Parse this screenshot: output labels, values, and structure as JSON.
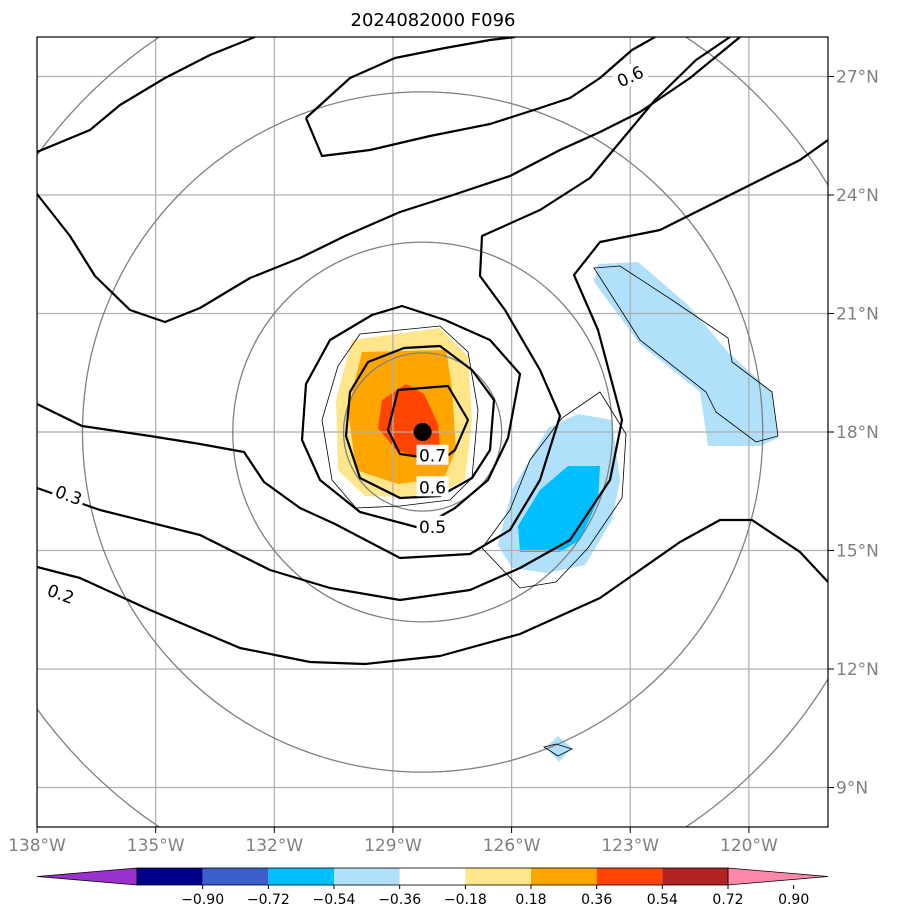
{
  "map": {
    "title": "2024082000 F096",
    "lon_range": [
      -138,
      -118
    ],
    "lat_range": [
      8,
      28
    ],
    "lon_ticks": [
      {
        "value": -138,
        "label": "138°W"
      },
      {
        "value": -135,
        "label": "135°W"
      },
      {
        "value": -132,
        "label": "132°W"
      },
      {
        "value": -129,
        "label": "129°W"
      },
      {
        "value": -126,
        "label": "126°W"
      },
      {
        "value": -123,
        "label": "123°W"
      },
      {
        "value": -120,
        "label": "120°W"
      }
    ],
    "lat_ticks": [
      {
        "value": 27,
        "label": "27°N"
      },
      {
        "value": 24,
        "label": "24°N"
      },
      {
        "value": 21,
        "label": "21°N"
      },
      {
        "value": 18,
        "label": "18°N"
      },
      {
        "value": 15,
        "label": "15°N"
      },
      {
        "value": 12,
        "label": "12°N"
      },
      {
        "value": 9,
        "label": "9°N"
      }
    ],
    "storm_center": {
      "lon": -128.25,
      "lat": 18.0
    },
    "range_rings_deg": [
      2,
      4.8,
      8.6,
      12
    ],
    "contour_labels": [
      {
        "text": "0.6",
        "lon": -123.0,
        "lat": 27.0,
        "angle": -25
      },
      {
        "text": "0.7",
        "lon": -128.0,
        "lat": 17.4,
        "angle": 0
      },
      {
        "text": "0.6",
        "lon": -128.0,
        "lat": 16.6,
        "angle": 0
      },
      {
        "text": "0.5",
        "lon": -128.0,
        "lat": 15.6,
        "angle": 0
      },
      {
        "text": "0.3",
        "lon": -137.2,
        "lat": 16.4,
        "angle": 20
      },
      {
        "text": "0.2",
        "lon": -137.4,
        "lat": 13.9,
        "angle": 20
      }
    ],
    "colors": {
      "grid": "#b0b0b0",
      "rings": "#808080",
      "contour": "#000000",
      "storm_marker": "#000000"
    }
  },
  "colorbar": {
    "tick_labels": [
      "−0.90",
      "−0.72",
      "−0.54",
      "−0.36",
      "−0.18",
      "0.18",
      "0.36",
      "0.54",
      "0.72",
      "0.90"
    ],
    "colors": [
      "#9932cc",
      "#00008b",
      "#3b5fcd",
      "#00bfff",
      "#b0e0fa",
      "#ffffff",
      "#ffe68a",
      "#ffa500",
      "#ff4500",
      "#b22222",
      "#ff88aa"
    ]
  }
}
